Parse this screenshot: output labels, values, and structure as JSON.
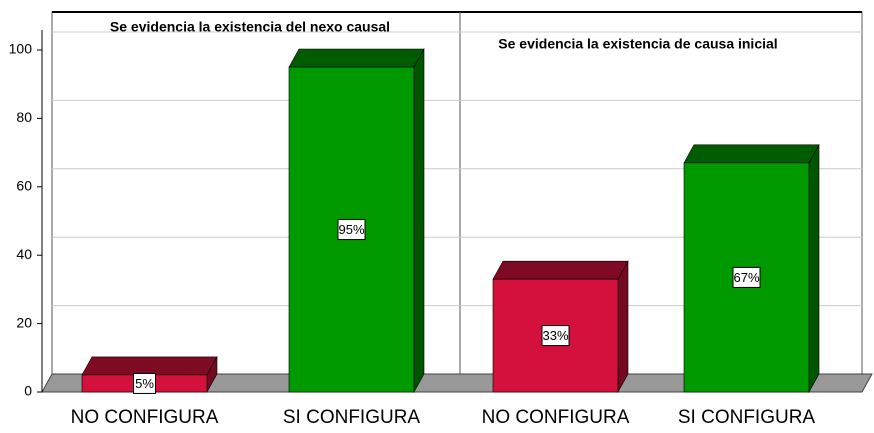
{
  "chart_data": {
    "type": "bar",
    "ylim": [
      0,
      100
    ],
    "yticks": [
      0,
      20,
      40,
      60,
      80,
      100
    ],
    "grid": true,
    "panels": [
      {
        "title": "Se evidencia la existencia del nexo causal",
        "categories": [
          "NO CONFIGURA",
          "SI CONFIGURA"
        ],
        "values": [
          5,
          95
        ],
        "value_labels": [
          "5%",
          "95%"
        ],
        "colors": [
          "#d4103c",
          "#009a00"
        ]
      },
      {
        "title": "Se evidencia la existencia de causa inicial",
        "categories": [
          "NO CONFIGURA",
          "SI CONFIGURA"
        ],
        "values": [
          33,
          67
        ],
        "value_labels": [
          "33%",
          "67%"
        ],
        "colors": [
          "#d4103c",
          "#009a00"
        ]
      }
    ]
  }
}
